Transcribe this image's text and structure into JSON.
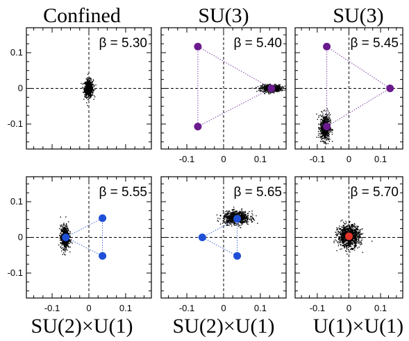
{
  "chart_data": [
    {
      "type": "scatter",
      "title": "Confined",
      "annotation": "β = 5.30",
      "xlim": [
        -0.17,
        0.17
      ],
      "ylim": [
        -0.17,
        0.17
      ],
      "xticks": [
        "",
        "",
        ""
      ],
      "yticks": [
        "0.1",
        "0",
        "-0.1"
      ],
      "cloud": {
        "center": [
          0.0,
          0.0
        ],
        "spread": [
          0.006,
          0.012
        ],
        "n": 650
      },
      "markers": [],
      "triangle": null
    },
    {
      "type": "scatter",
      "title": "SU(3)",
      "annotation": "β = 5.40",
      "xlim": [
        -0.17,
        0.17
      ],
      "ylim": [
        -0.17,
        0.17
      ],
      "xticks": [
        "-0.1",
        "0",
        "0.1"
      ],
      "yticks": [
        "",
        "",
        ""
      ],
      "cloud": {
        "center": [
          0.13,
          0.0
        ],
        "spread": [
          0.014,
          0.005
        ],
        "n": 550
      },
      "markers": [
        {
          "x": -0.07,
          "y": 0.117,
          "color": "#6a1a8c"
        },
        {
          "x": -0.07,
          "y": -0.107,
          "color": "#6a1a8c"
        },
        {
          "x": 0.13,
          "y": 0.0,
          "color": "#6a1a8c"
        }
      ],
      "triangle": {
        "color": "#7a3aa0"
      }
    },
    {
      "type": "scatter",
      "title": "SU(3)",
      "annotation": "β = 5.45",
      "xlim": [
        -0.17,
        0.17
      ],
      "ylim": [
        -0.17,
        0.17
      ],
      "xticks": [
        "-0.1",
        "0",
        "0.1"
      ],
      "yticks": [
        "",
        "",
        ""
      ],
      "cloud": {
        "center": [
          -0.075,
          -0.11
        ],
        "spread": [
          0.008,
          0.018
        ],
        "n": 650
      },
      "markers": [
        {
          "x": -0.07,
          "y": 0.117,
          "color": "#6a1a8c"
        },
        {
          "x": -0.07,
          "y": -0.107,
          "color": "#6a1a8c"
        },
        {
          "x": 0.13,
          "y": 0.0,
          "color": "#6a1a8c"
        }
      ],
      "triangle": {
        "color": "#7a3aa0"
      }
    },
    {
      "type": "scatter",
      "title": "SU(2)×U(1)",
      "annotation": "β = 5.55",
      "xlim": [
        -0.17,
        0.17
      ],
      "ylim": [
        -0.17,
        0.17
      ],
      "xticks": [
        "-0.1",
        "0",
        "0.1"
      ],
      "yticks": [
        "0.1",
        "0",
        "-0.1"
      ],
      "cloud": {
        "center": [
          -0.065,
          0.0
        ],
        "spread": [
          0.006,
          0.016
        ],
        "n": 600
      },
      "markers": [
        {
          "x": -0.063,
          "y": 0.0,
          "color": "#1f4fd6"
        },
        {
          "x": 0.037,
          "y": 0.054,
          "color": "#1f4fd6"
        },
        {
          "x": 0.037,
          "y": -0.052,
          "color": "#1f4fd6"
        }
      ],
      "triangle": {
        "color": "#3b63d8"
      }
    },
    {
      "type": "scatter",
      "title": "SU(2)×U(1)",
      "annotation": "β = 5.65",
      "xlim": [
        -0.17,
        0.17
      ],
      "ylim": [
        -0.17,
        0.17
      ],
      "xticks": [
        "-0.1",
        "0",
        "0.1"
      ],
      "yticks": [
        "",
        "",
        ""
      ],
      "cloud": {
        "center": [
          0.035,
          0.055
        ],
        "spread": [
          0.018,
          0.009
        ],
        "n": 750
      },
      "markers": [
        {
          "x": -0.058,
          "y": 0.0,
          "color": "#1f4fd6"
        },
        {
          "x": 0.037,
          "y": 0.052,
          "color": "#1f4fd6"
        },
        {
          "x": 0.037,
          "y": -0.052,
          "color": "#1f4fd6"
        }
      ],
      "triangle": {
        "color": "#3b63d8"
      }
    },
    {
      "type": "scatter",
      "title": "U(1)×U(1)",
      "annotation": "β = 5.70",
      "xlim": [
        -0.17,
        0.17
      ],
      "ylim": [
        -0.17,
        0.17
      ],
      "xticks": [
        "-0.1",
        "0",
        "0.1"
      ],
      "yticks": [
        "",
        "",
        ""
      ],
      "cloud": {
        "center": [
          0.0,
          0.003
        ],
        "spread": [
          0.017,
          0.015
        ],
        "n": 1100
      },
      "markers": [
        {
          "x": 0.0,
          "y": 0.003,
          "color": "#e0342a"
        }
      ],
      "triangle": null
    }
  ],
  "colors": {
    "points": "#000000",
    "axes": "#000000",
    "guides": "#000000"
  }
}
